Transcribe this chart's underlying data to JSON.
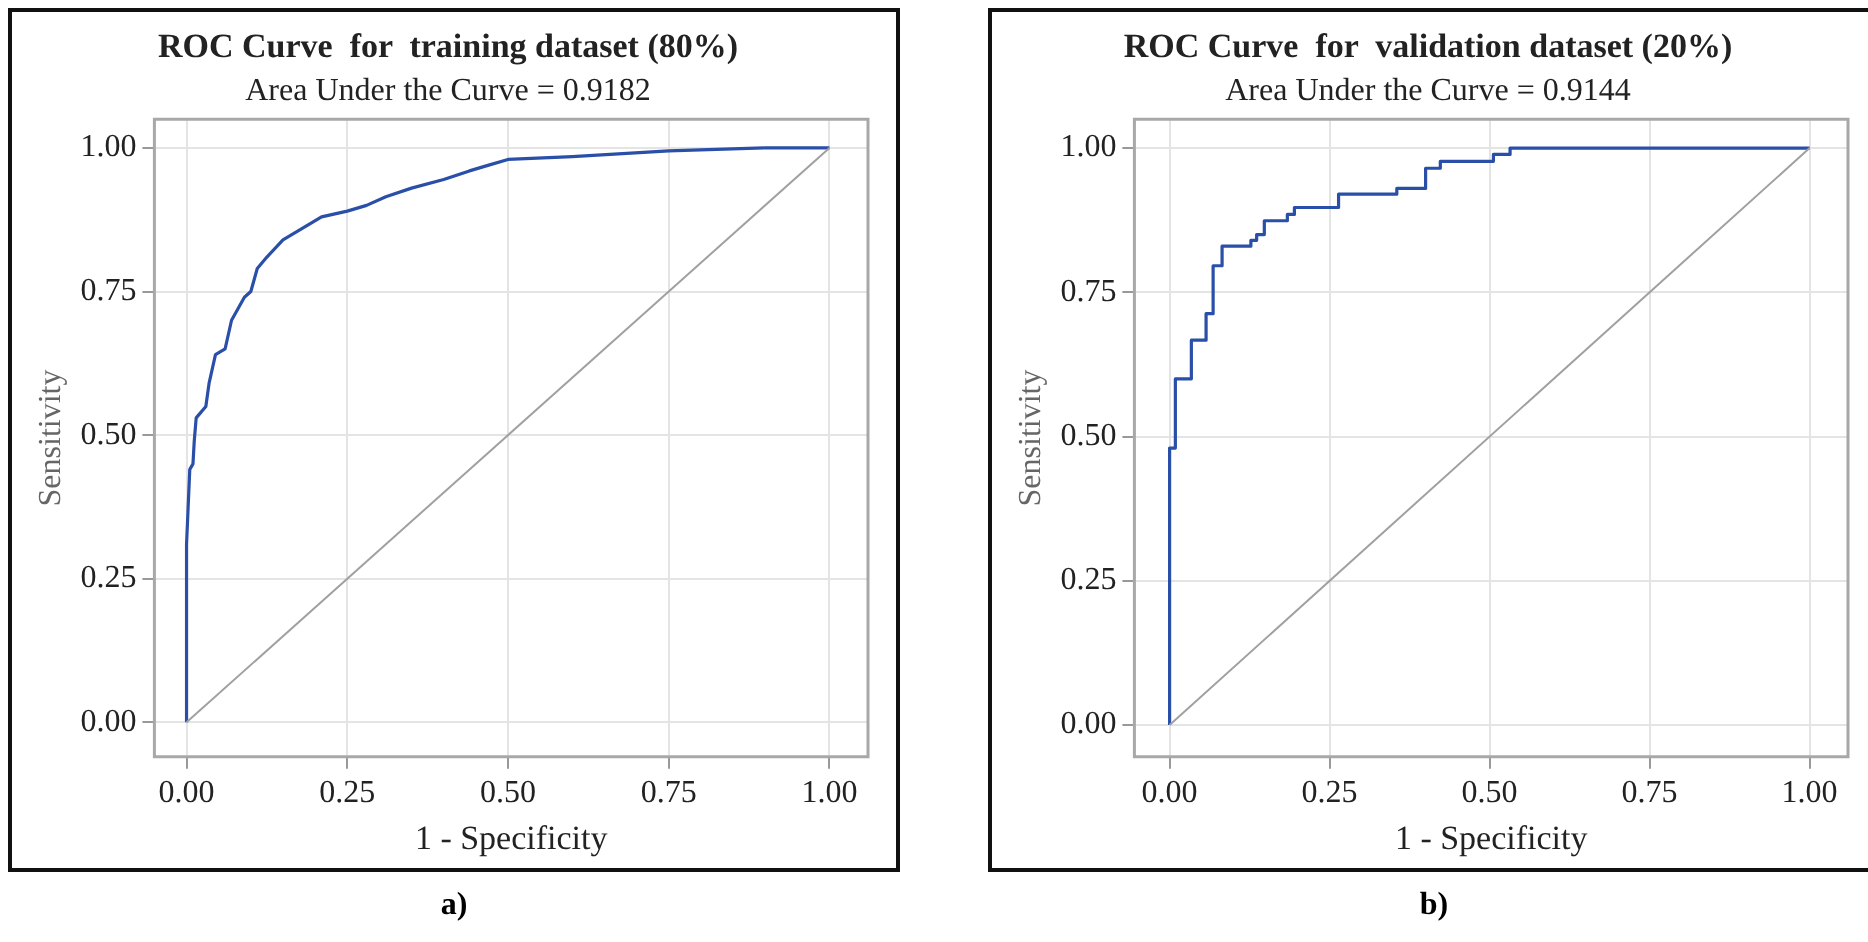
{
  "chart_data": [
    {
      "type": "line",
      "title": "ROC Curve  for  training dataset (80%)",
      "subtitle": "Area Under the Curve = 0.9182",
      "xlabel": "1 - Specificity",
      "ylabel": "Sensitivity",
      "annotations": [
        "a)"
      ],
      "xlim": [
        -0.05,
        1.06
      ],
      "ylim": [
        -0.06,
        1.05
      ],
      "xticks": [
        {
          "value": 0,
          "label": "0.00"
        },
        {
          "value": 0.25,
          "label": "0.25"
        },
        {
          "value": 0.5,
          "label": "0.50"
        },
        {
          "value": 0.75,
          "label": "0.75"
        },
        {
          "value": 1,
          "label": "1.00"
        }
      ],
      "yticks": [
        {
          "value": 0,
          "label": "0.00"
        },
        {
          "value": 0.25,
          "label": "0.25"
        },
        {
          "value": 0.5,
          "label": "0.50"
        },
        {
          "value": 0.75,
          "label": "0.75"
        },
        {
          "value": 1,
          "label": "1.00"
        }
      ],
      "grid": true,
      "legend": false,
      "series": [
        {
          "type": "line",
          "color": "#a0a0a0",
          "x": [
            0,
            1
          ],
          "values": [
            0,
            1
          ]
        },
        {
          "color": "#2a4fa8",
          "x": [
            0,
            0,
            0.005,
            0.01,
            0.012,
            0.015,
            0.03,
            0.035,
            0.045,
            0.06,
            0.07,
            0.08,
            0.09,
            0.1,
            0.11,
            0.125,
            0.15,
            0.18,
            0.21,
            0.25,
            0.28,
            0.31,
            0.35,
            0.4,
            0.44,
            0.47,
            0.5,
            0.6,
            0.75,
            0.9,
            1
          ],
          "values": [
            0,
            0.31,
            0.44,
            0.45,
            0.49,
            0.53,
            0.55,
            0.59,
            0.64,
            0.65,
            0.7,
            0.72,
            0.74,
            0.75,
            0.79,
            0.81,
            0.84,
            0.86,
            0.88,
            0.89,
            0.9,
            0.915,
            0.93,
            0.945,
            0.96,
            0.97,
            0.98,
            0.985,
            0.995,
            1,
            1
          ]
        }
      ]
    },
    {
      "type": "step",
      "title": "ROC Curve  for  validation dataset (20%)",
      "subtitle": "Area Under the Curve = 0.9144",
      "xlabel": "1 - Specificity",
      "ylabel": "Sensitivity",
      "annotations": [
        "b)"
      ],
      "xlim": [
        -0.055,
        1.06
      ],
      "ylim": [
        -0.055,
        1.05
      ],
      "xticks": [
        {
          "value": 0,
          "label": "0.00"
        },
        {
          "value": 0.25,
          "label": "0.25"
        },
        {
          "value": 0.5,
          "label": "0.50"
        },
        {
          "value": 0.75,
          "label": "0.75"
        },
        {
          "value": 1,
          "label": "1.00"
        }
      ],
      "yticks": [
        {
          "value": 0,
          "label": "0.00"
        },
        {
          "value": 0.25,
          "label": "0.25"
        },
        {
          "value": 0.5,
          "label": "0.50"
        },
        {
          "value": 0.75,
          "label": "0.75"
        },
        {
          "value": 1,
          "label": "1.00"
        }
      ],
      "grid": true,
      "legend": false,
      "series": [
        {
          "type": "line",
          "color": "#a0a0a0",
          "x": [
            0,
            1
          ],
          "values": [
            0,
            1
          ]
        },
        {
          "color": "#2a4fa8",
          "x": [
            0,
            0,
            0.009,
            0.034,
            0.057,
            0.068,
            0.082,
            0.127,
            0.136,
            0.148,
            0.184,
            0.195,
            0.264,
            0.355,
            0.4,
            0.423,
            0.506,
            0.532,
            0.83,
            1
          ],
          "values": [
            0,
            0.31,
            0.48,
            0.6,
            0.667,
            0.713,
            0.796,
            0.83,
            0.84,
            0.85,
            0.874,
            0.885,
            0.897,
            0.92,
            0.93,
            0.965,
            0.977,
            0.989,
            1,
            1
          ]
        }
      ]
    }
  ]
}
